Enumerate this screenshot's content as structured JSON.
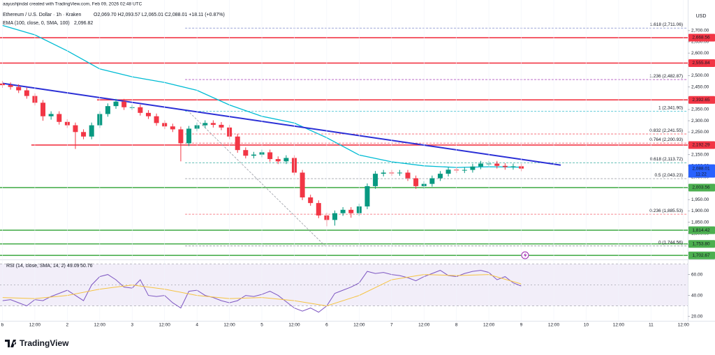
{
  "header": {
    "credit": "aayushjindal created with TradingView.com, Feb 09, 2026 02:48 UTC",
    "symbol": "Ethereum / U.S. Dollar · 1h · Kraken",
    "ohlc": "O2,069.70 H2,093.57 L2,065.01 C2,088.01 +18.11 (+0.87%)",
    "currency": "USD"
  },
  "footer": {
    "brand": "TradingView"
  },
  "chart_data": [
    {
      "type": "candlestick",
      "xlim": [
        -0.9,
        253.6
      ],
      "ylim": [
        1691,
        2780
      ],
      "xticks": [
        {
          "value": 0,
          "label": "b"
        },
        {
          "value": 12,
          "label": "12:00"
        },
        {
          "value": 24,
          "label": "2"
        },
        {
          "value": 36,
          "label": "12:00"
        },
        {
          "value": 48,
          "label": "3"
        },
        {
          "value": 60,
          "label": "12:00"
        },
        {
          "value": 72,
          "label": "4"
        },
        {
          "value": 84,
          "label": "12:00"
        },
        {
          "value": 96,
          "label": "5"
        },
        {
          "value": 108,
          "label": "12:00"
        },
        {
          "value": 120,
          "label": "6"
        },
        {
          "value": 132,
          "label": "12:00"
        },
        {
          "value": 144,
          "label": "7"
        },
        {
          "value": 156,
          "label": "12:00"
        },
        {
          "value": 168,
          "label": "8"
        },
        {
          "value": 180,
          "label": "12:00"
        },
        {
          "value": 192,
          "label": "9"
        },
        {
          "value": 204,
          "label": "12:00"
        },
        {
          "value": 216,
          "label": "10"
        },
        {
          "value": 228,
          "label": "12:00"
        },
        {
          "value": 240,
          "label": "11"
        },
        {
          "value": 252,
          "label": "12:00"
        }
      ],
      "yticks": [
        {
          "value": 2700,
          "label": "2,700.00"
        },
        {
          "value": 2650,
          "label": "2,650.00"
        },
        {
          "value": 2600,
          "label": "2,600.00"
        },
        {
          "value": 2550,
          "label": "2,550.00"
        },
        {
          "value": 2500,
          "label": "2,500.00"
        },
        {
          "value": 2450,
          "label": "2,450.00"
        },
        {
          "value": 2400,
          "label": "2,400.00"
        },
        {
          "value": 2350,
          "label": "2,350.00"
        },
        {
          "value": 2300,
          "label": "2,300.00"
        },
        {
          "value": 2250,
          "label": "2,250.00"
        },
        {
          "value": 2200,
          "label": "2,200.00"
        },
        {
          "value": 2150,
          "label": "2,150.00"
        },
        {
          "value": 2100,
          "label": "2,100.00"
        },
        {
          "value": 2050,
          "label": "2,050.00"
        },
        {
          "value": 2000,
          "label": "2,000.00"
        },
        {
          "value": 1950,
          "label": "1,950.00"
        },
        {
          "value": 1900,
          "label": "1,900.00"
        },
        {
          "value": 1850,
          "label": "1,850.00"
        },
        {
          "value": 1800,
          "label": "1,800.00"
        },
        {
          "value": 1750,
          "label": "1,750.00"
        }
      ],
      "up_color": "#089981",
      "down_color": "#f23645",
      "x": [
        0,
        3,
        6,
        9,
        12,
        15,
        18,
        21,
        24,
        27,
        30,
        33,
        36,
        39,
        42,
        45,
        48,
        51,
        54,
        57,
        60,
        63,
        66,
        69,
        72,
        75,
        78,
        81,
        84,
        87,
        90,
        93,
        96,
        99,
        102,
        105,
        108,
        111,
        114,
        117,
        120,
        123,
        126,
        129,
        132,
        135,
        138,
        141,
        144,
        147,
        150,
        153,
        156,
        159,
        162,
        165,
        168,
        171,
        174,
        177,
        180,
        183,
        186,
        189,
        192
      ],
      "open": [
        2465,
        2458,
        2450,
        2435,
        2410,
        2380,
        2320,
        2330,
        2295,
        2280,
        2250,
        2230,
        2280,
        2330,
        2365,
        2385,
        2360,
        2360,
        2335,
        2320,
        2290,
        2275,
        2262,
        2200,
        2265,
        2280,
        2290,
        2282,
        2270,
        2230,
        2170,
        2145,
        2150,
        2160,
        2130,
        2120,
        2135,
        2070,
        1960,
        1935,
        1880,
        1860,
        1890,
        1905,
        1890,
        1920,
        2010,
        2065,
        2070,
        2068,
        2070,
        2045,
        2010,
        2020,
        2045,
        2065,
        2083,
        2080,
        2082,
        2097,
        2110,
        2110,
        2100,
        2095,
        2098
      ],
      "high": [
        2477,
        2470,
        2462,
        2447,
        2422,
        2392,
        2342,
        2342,
        2307,
        2292,
        2262,
        2292,
        2342,
        2377,
        2397,
        2397,
        2372,
        2372,
        2347,
        2332,
        2302,
        2287,
        2274,
        2277,
        2292,
        2302,
        2302,
        2294,
        2282,
        2242,
        2182,
        2162,
        2172,
        2172,
        2142,
        2147,
        2147,
        2082,
        1972,
        1947,
        1892,
        1902,
        1917,
        1917,
        1932,
        2022,
        2077,
        2082,
        2082,
        2082,
        2082,
        2057,
        2032,
        2057,
        2077,
        2095,
        2095,
        2094,
        2109,
        2122,
        2122,
        2122,
        2112,
        2110,
        2110
      ],
      "low": [
        2446,
        2438,
        2423,
        2398,
        2368,
        2300,
        2305,
        2283,
        2268,
        2175,
        2218,
        2218,
        2268,
        2318,
        2353,
        2348,
        2348,
        2323,
        2308,
        2278,
        2263,
        2250,
        2120,
        2188,
        2253,
        2268,
        2270,
        2258,
        2218,
        2158,
        2133,
        2133,
        2138,
        2118,
        2108,
        2108,
        2058,
        1948,
        1923,
        1868,
        1832,
        1835,
        1878,
        1870,
        1878,
        1908,
        1998,
        2053,
        2056,
        2056,
        2033,
        1998,
        1998,
        2008,
        2033,
        2053,
        2068,
        2068,
        2070,
        2085,
        2098,
        2088,
        2083,
        2083,
        2076
      ],
      "close": [
        2458,
        2450,
        2435,
        2410,
        2380,
        2320,
        2330,
        2295,
        2280,
        2250,
        2230,
        2280,
        2330,
        2365,
        2385,
        2360,
        2360,
        2335,
        2320,
        2290,
        2275,
        2262,
        2200,
        2265,
        2280,
        2290,
        2282,
        2270,
        2230,
        2170,
        2145,
        2150,
        2160,
        2130,
        2120,
        2135,
        2070,
        1960,
        1935,
        1880,
        1860,
        1890,
        1905,
        1890,
        1920,
        2010,
        2065,
        2070,
        2068,
        2070,
        2045,
        2010,
        2020,
        2045,
        2065,
        2083,
        2080,
        2082,
        2097,
        2110,
        2110,
        2100,
        2095,
        2098,
        2088
      ],
      "ema": {
        "label": "EMA (100, close, 0, SMA, 100)",
        "last": {
          "value": 2096.82,
          "label": "2,096.82"
        },
        "color": "#00bcd4",
        "x": [
          0,
          12,
          24,
          36,
          48,
          60,
          72,
          84,
          96,
          108,
          120,
          132,
          144,
          156,
          168,
          180,
          192
        ],
        "values": [
          2723,
          2681,
          2610,
          2530,
          2495,
          2470,
          2435,
          2370,
          2320,
          2290,
          2225,
          2148,
          2118,
          2100,
          2093,
          2096,
          2094
        ]
      },
      "trendline": {
        "color": "#2a2fd6",
        "x": [
          0,
          206.6
        ],
        "values": [
          2466,
          2103
        ]
      },
      "levels": [
        {
          "value": 2668.56,
          "label": "2,668.56",
          "color": "#f23645"
        },
        {
          "value": 2555.84,
          "label": "2,555.84",
          "color": "#f23645"
        },
        {
          "value": 2392.65,
          "label": "2,392.65",
          "color": "#f23645",
          "start": 35
        },
        {
          "value": 2192.29,
          "label": "2,192.29",
          "color": "#f23645",
          "start": 10.7
        },
        {
          "value": 2003.56,
          "label": "2,003.56",
          "color": "#4caf50"
        },
        {
          "value": 1814.42,
          "label": "1,814.42",
          "color": "#4caf50"
        },
        {
          "value": 1753.8,
          "label": "1,753.80",
          "color": "#4caf50"
        },
        {
          "value": 1702.67,
          "label": "1,702.67",
          "color": "#4caf50"
        }
      ],
      "fib": {
        "start": 67.6,
        "anchor": {
          "x": [
            68.4,
            119.2
          ],
          "values": [
            2347,
            1747
          ]
        },
        "levels": [
          {
            "price": 2711.06,
            "label": "1.618 (2,711.06)",
            "color": "#5c6bc0"
          },
          {
            "price": 2482.87,
            "label": "1.236 (2,482.87)",
            "color": "#9c27b0"
          },
          {
            "price": 2341.9,
            "label": "1 (2,341.90)",
            "color": "#00acc1"
          },
          {
            "price": 2241.55,
            "label": "0.832 (2,241.55)",
            "color": "#f23645"
          },
          {
            "price": 2200.93,
            "label": "0.764 (2,200.93)",
            "color": "#f23645"
          },
          {
            "price": 2113.72,
            "label": "0.618 (2,113.72)",
            "color": "#009688"
          },
          {
            "price": 2043.23,
            "label": "0.5 (2,043.23)",
            "color": "#787b86"
          },
          {
            "price": 1885.53,
            "label": "0.236 (1,885.53)",
            "color": "#f23645"
          },
          {
            "price": 1744.56,
            "label": "0 (1,744.56)",
            "color": "#787b86"
          }
        ]
      },
      "last": {
        "value": 2088.01,
        "label": "2,088.01",
        "countdown": "11:22",
        "color": "#2962ff"
      }
    },
    {
      "type": "line",
      "title": "RSI (14, close, SMA, 14, 2)",
      "xlim": [
        -0.9,
        253.6
      ],
      "ylim": [
        15.7,
        71.7
      ],
      "yticks": [
        {
          "value": 60,
          "label": "60.00"
        },
        {
          "value": 40,
          "label": "40.00"
        },
        {
          "value": 20,
          "label": "20.00"
        }
      ],
      "band": [
        30,
        70
      ],
      "midline": 50,
      "series": [
        {
          "color": "#7e57c2",
          "last": 49.09,
          "x": [
            0,
            3,
            6,
            9,
            12,
            15,
            18,
            21,
            24,
            27,
            30,
            33,
            36,
            39,
            42,
            45,
            48,
            51,
            54,
            57,
            60,
            63,
            66,
            69,
            72,
            75,
            78,
            81,
            84,
            87,
            90,
            93,
            96,
            99,
            102,
            105,
            108,
            111,
            114,
            117,
            120,
            123,
            126,
            129,
            132,
            135,
            138,
            141,
            144,
            147,
            150,
            153,
            156,
            159,
            162,
            165,
            168,
            171,
            174,
            177,
            180,
            183,
            186,
            189,
            192
          ],
          "values": [
            35,
            36,
            33,
            30,
            36,
            35,
            39,
            42,
            45,
            40,
            35,
            50,
            58,
            60,
            55,
            48,
            47,
            55,
            40,
            39,
            40,
            33,
            28,
            44,
            45,
            40,
            38,
            35,
            33,
            35,
            40,
            39,
            41,
            44,
            40,
            34,
            28,
            25,
            28,
            24,
            30,
            42,
            45,
            48,
            52,
            63,
            61,
            62,
            60,
            59,
            57,
            54,
            58,
            61,
            64,
            59,
            58,
            61,
            63,
            64,
            62,
            55,
            58,
            52,
            49
          ]
        },
        {
          "color": "#f5c342",
          "last": 50.76,
          "x": [
            0,
            12,
            24,
            36,
            48,
            60,
            72,
            84,
            96,
            108,
            120,
            132,
            144,
            156,
            168,
            180,
            192
          ],
          "values": [
            38,
            37,
            40,
            46,
            50,
            46,
            40,
            37,
            38,
            35,
            30,
            40,
            55,
            60,
            59,
            60,
            51
          ]
        }
      ]
    }
  ]
}
